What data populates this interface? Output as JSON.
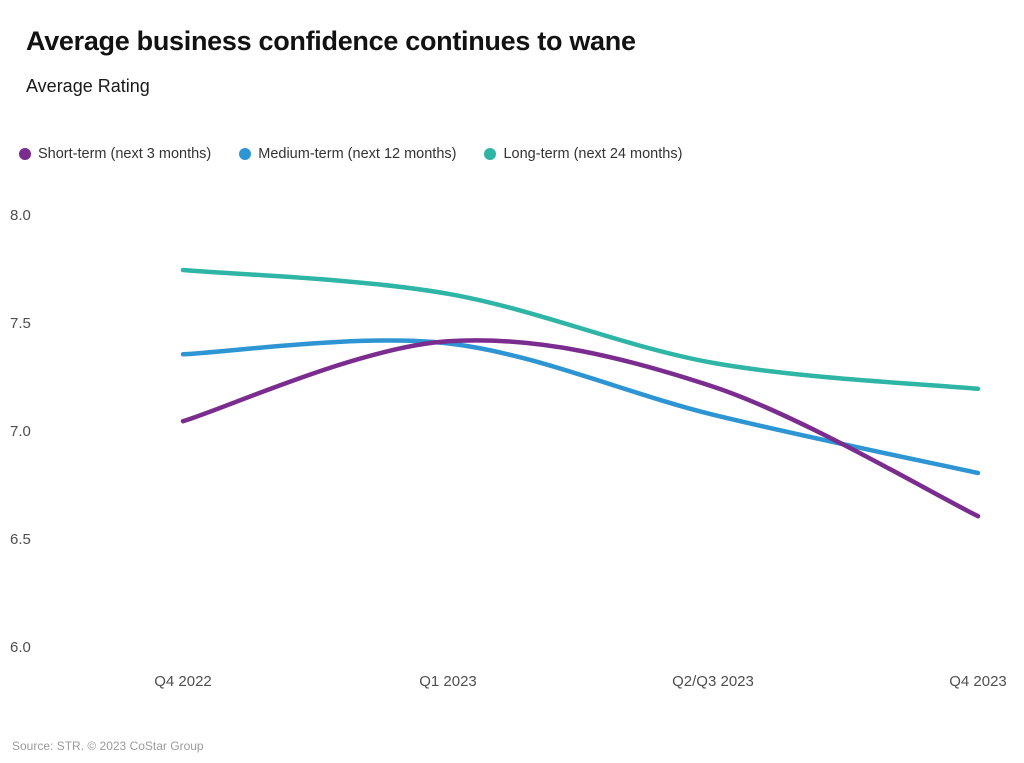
{
  "header": {
    "title": "Average business confidence continues to wane",
    "subtitle": "Average Rating"
  },
  "chart_data": {
    "type": "line",
    "title": "Average business confidence continues to wane",
    "ylabel": "Average Rating",
    "categories": [
      "Q4 2022",
      "Q1 2023",
      "Q2/Q3 2023",
      "Q4 2023"
    ],
    "series": [
      {
        "name": "Short-term (next 3 months)",
        "color": "#7b2c8f",
        "values": [
          7.05,
          7.42,
          7.21,
          6.61
        ]
      },
      {
        "name": "Medium-term (next 12 months)",
        "color": "#2d95d3",
        "values": [
          7.36,
          7.41,
          7.08,
          6.81
        ]
      },
      {
        "name": "Long-term (next 24 months)",
        "color": "#2eb5a5",
        "values": [
          7.75,
          7.64,
          7.32,
          7.2
        ]
      }
    ],
    "ylim": [
      6.0,
      8.0
    ],
    "yticks": [
      "8.0",
      "7.5",
      "7.0",
      "6.5",
      "6.0"
    ],
    "grid": false,
    "legend_position": "top-left",
    "line_smoothing": "spline"
  },
  "footer": {
    "source": "Source: STR. © 2023 CoStar Group"
  }
}
